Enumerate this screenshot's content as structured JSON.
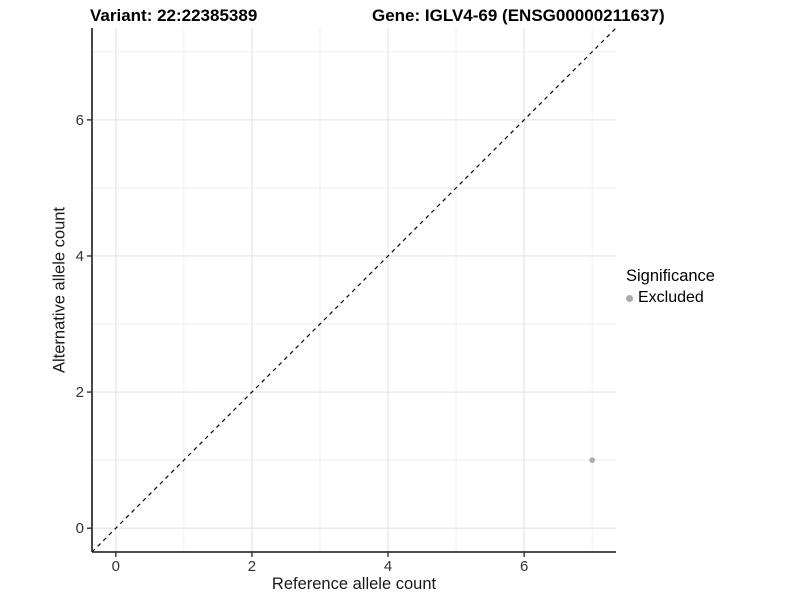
{
  "chart_data": {
    "type": "scatter",
    "title_left": "Variant: 22:22385389",
    "title_right": "Gene: IGLV4-69 (ENSG00000211637)",
    "xlabel": "Reference allele count",
    "ylabel": "Alternative allele count",
    "xlim": [
      -0.35,
      7.35
    ],
    "ylim": [
      -0.35,
      7.35
    ],
    "x_ticks": [
      0,
      2,
      4,
      6
    ],
    "y_ticks": [
      0,
      2,
      4,
      6
    ],
    "grid_range": [
      0,
      7
    ],
    "grid_every": 1,
    "identity_line": {
      "equation": "y = x",
      "style": "dashed",
      "color": "#000000"
    },
    "series": [
      {
        "name": "Excluded",
        "color": "#aaaaaa",
        "points": [
          {
            "x": 7,
            "y": 1
          }
        ]
      }
    ],
    "legend": {
      "title": "Significance",
      "position": "right",
      "items": [
        {
          "label": "Excluded",
          "color": "#aaaaaa"
        }
      ]
    },
    "grid_on": true
  },
  "colors": {
    "background": "#ffffff",
    "grid_major": "#e4e4e4",
    "grid_minor": "#ededed",
    "axis_line": "#333333",
    "tick_label": "#333333",
    "point": "#aaaaaa",
    "dashed_line": "#000000"
  }
}
